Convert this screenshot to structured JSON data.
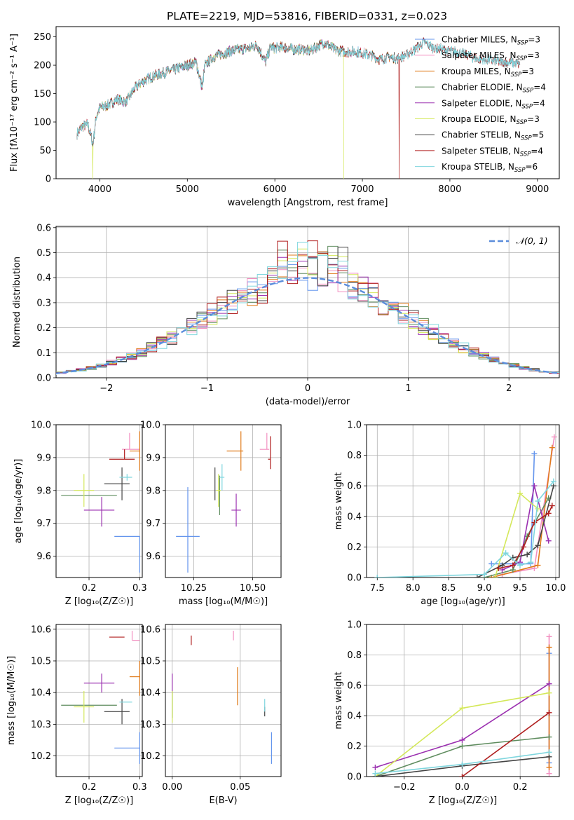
{
  "title": "PLATE=2219, MJD=53816, FIBERID=0331, z=0.023",
  "colors": {
    "Chabrier MILES": "#6495ED",
    "Salpeter MILES": "#F28FC0",
    "Kroupa MILES": "#E07B1A",
    "Chabrier ELODIE": "#5E8C5E",
    "Salpeter ELODIE": "#9B30B0",
    "Kroupa ELODIE": "#D4E85A",
    "Chabrier STELIB": "#444444",
    "Salpeter STELIB": "#B01F1F",
    "Kroupa STELIB": "#7FD6DE",
    "normal": "#5B8DDB"
  },
  "chart_data": [
    {
      "id": "spectrum",
      "type": "line",
      "xlabel": "wavelength [Angstrom, rest frame]",
      "ylabel": "Flux [fλ10⁻¹⁷ erg cm⁻² s⁻¹ A⁻¹]",
      "xlim": [
        3500,
        9250
      ],
      "ylim": [
        0,
        268
      ],
      "xticks": [
        4000,
        5000,
        6000,
        7000,
        8000,
        9000
      ],
      "yticks": [
        0,
        50,
        100,
        150,
        200,
        250
      ],
      "grid": false,
      "legend_position": "right",
      "legend": [
        "Chabrier MILES, NSSP=3",
        "Salpeter MILES, NSSP=3",
        "Kroupa MILES, NSSP=3",
        "Chabrier ELODIE, NSSP=4",
        "Salpeter ELODIE, NSSP=4",
        "Kroupa ELODIE, NSSP=3",
        "Chabrier STELIB, NSSP=5",
        "Salpeter STELIB, NSSP=4",
        "Kroupa STELIB, NSSP=6"
      ],
      "continuum": {
        "x": [
          3740,
          3800,
          3860,
          3900,
          3920,
          3960,
          4000,
          4100,
          4200,
          4300,
          4400,
          4500,
          4600,
          4700,
          4800,
          4900,
          5000,
          5100,
          5170,
          5200,
          5300,
          5400,
          5500,
          5600,
          5700,
          5800,
          5895,
          5950,
          6000,
          6100,
          6200,
          6300,
          6400,
          6563,
          6700,
          6800,
          6900,
          7000,
          7100,
          7200,
          7300,
          7400,
          7500,
          7600,
          7700,
          7800,
          7900,
          8000,
          8100,
          8200,
          8300,
          8400,
          8500,
          8600,
          8700,
          8800
        ],
        "y": [
          80,
          92,
          96,
          75,
          60,
          110,
          125,
          130,
          140,
          135,
          160,
          172,
          180,
          185,
          190,
          195,
          200,
          205,
          160,
          200,
          215,
          220,
          225,
          228,
          230,
          235,
          205,
          232,
          230,
          232,
          228,
          228,
          225,
          240,
          226,
          224,
          224,
          222,
          217,
          210,
          215,
          212,
          218,
          228,
          240,
          232,
          228,
          225,
          222,
          218,
          212,
          210,
          208,
          206,
          205,
          202
        ]
      },
      "dropouts": [
        {
          "series": "Kroupa ELODIE",
          "x": 3920
        },
        {
          "series": "Kroupa ELODIE",
          "x": 6790
        },
        {
          "series": "Salpeter STELIB",
          "x": 7420
        }
      ],
      "end_x": {
        "MILES": 7400,
        "ELODIE": 6790,
        "STELIB": 8800
      }
    },
    {
      "id": "residual_hist",
      "type": "area",
      "xlabel": "(data-model)/error",
      "ylabel": "Normed distribution",
      "xlim": [
        -2.5,
        2.5
      ],
      "ylim": [
        0,
        0.605
      ],
      "xticks": [
        -2,
        -1,
        0,
        1,
        2
      ],
      "yticks": [
        0.0,
        0.1,
        0.2,
        0.3,
        0.4,
        0.5,
        0.6
      ],
      "xtick_labels": [
        "−2",
        "−1",
        "0",
        "1",
        "2"
      ],
      "grid": true,
      "legend_position": "top-right",
      "legend": [
        "𝒩(0, 1)"
      ],
      "bin_width": 0.1,
      "reference_curve": "normal(0,1) pdf"
    },
    {
      "id": "age_vs_Z",
      "type": "scatter",
      "xlabel": "Z [log₁₀(Z/Z☉)]",
      "ylabel": "age  [log₁₀(age/yr)]",
      "xlim": [
        0.135,
        0.305
      ],
      "ylim": [
        9.535,
        10.0
      ],
      "xticks": [
        0.2,
        0.3
      ],
      "yticks": [
        9.6,
        9.7,
        9.8,
        9.9,
        10.0
      ],
      "grid": true,
      "points": [
        {
          "series": "Chabrier MILES",
          "x": 0.3,
          "y": 9.66,
          "xerr": [
            0.05,
            0.0
          ],
          "yerr": [
            0.11,
            0.0
          ]
        },
        {
          "series": "Salpeter MILES",
          "x": 0.28,
          "y": 9.925,
          "xerr": [
            0.015,
            0.02
          ],
          "yerr": [
            0.0,
            0.05
          ]
        },
        {
          "series": "Kroupa MILES",
          "x": 0.3,
          "y": 9.92,
          "xerr": [
            0.02,
            0.0
          ],
          "yerr": [
            0.06,
            0.06
          ]
        },
        {
          "series": "Chabrier ELODIE",
          "x": 0.205,
          "y": 9.785,
          "xerr": [
            0.06,
            0.05
          ],
          "yerr": [
            0.0,
            0.0
          ]
        },
        {
          "series": "Salpeter ELODIE",
          "x": 0.225,
          "y": 9.74,
          "xerr": [
            0.035,
            0.025
          ],
          "yerr": [
            0.05,
            0.04
          ]
        },
        {
          "series": "Kroupa ELODIE",
          "x": 0.19,
          "y": 9.8,
          "xerr": [
            0.02,
            0.02
          ],
          "yerr": [
            0.05,
            0.05
          ]
        },
        {
          "series": "Chabrier STELIB",
          "x": 0.265,
          "y": 9.82,
          "xerr": [
            0.035,
            0.015
          ],
          "yerr": [
            0.05,
            0.05
          ]
        },
        {
          "series": "Salpeter STELIB",
          "x": 0.27,
          "y": 9.895,
          "xerr": [
            0.03,
            0.02
          ],
          "yerr": [
            0.0,
            0.03
          ]
        },
        {
          "series": "Kroupa STELIB",
          "x": 0.275,
          "y": 9.84,
          "xerr": [
            0.015,
            0.01
          ],
          "yerr": [
            0.01,
            0.01
          ]
        }
      ]
    },
    {
      "id": "age_vs_mass",
      "type": "scatter",
      "xlabel": "mass [log₁₀(M/M☉)]",
      "ylabel": "",
      "xlim": [
        10.13,
        10.62
      ],
      "ylim": [
        9.535,
        10.0
      ],
      "xticks": [
        10.25,
        10.5
      ],
      "yticks": [
        9.6,
        9.7,
        9.8,
        9.9,
        10.0
      ],
      "grid": true,
      "points": [
        {
          "series": "Chabrier MILES",
          "x": 10.225,
          "y": 9.66,
          "xerr": [
            0.05,
            0.05
          ],
          "yerr": [
            0.11,
            0.15
          ]
        },
        {
          "series": "Salpeter MILES",
          "x": 10.56,
          "y": 9.925,
          "xerr": [
            0.03,
            0.01
          ],
          "yerr": [
            0.0,
            0.05
          ]
        },
        {
          "series": "Kroupa MILES",
          "x": 10.45,
          "y": 9.92,
          "xerr": [
            0.06,
            0.01
          ],
          "yerr": [
            0.06,
            0.06
          ]
        },
        {
          "series": "Chabrier ELODIE",
          "x": 10.36,
          "y": 9.785,
          "xerr": [
            0.0,
            0.0
          ],
          "yerr": [
            0.06,
            0.06
          ]
        },
        {
          "series": "Salpeter ELODIE",
          "x": 10.43,
          "y": 9.74,
          "xerr": [
            0.02,
            0.02
          ],
          "yerr": [
            0.05,
            0.05
          ]
        },
        {
          "series": "Kroupa ELODIE",
          "x": 10.355,
          "y": 9.8,
          "xerr": [
            0.01,
            0.01
          ],
          "yerr": [
            0.05,
            0.05
          ]
        },
        {
          "series": "Chabrier STELIB",
          "x": 10.34,
          "y": 9.82,
          "xerr": [
            0.0,
            0.0
          ],
          "yerr": [
            0.05,
            0.05
          ]
        },
        {
          "series": "Salpeter STELIB",
          "x": 10.575,
          "y": 9.895,
          "xerr": [
            0.01,
            0.0
          ],
          "yerr": [
            0.03,
            0.07
          ]
        },
        {
          "series": "Kroupa STELIB",
          "x": 10.37,
          "y": 9.84,
          "xerr": [
            0.01,
            0.01
          ],
          "yerr": [
            0.04,
            0.04
          ]
        }
      ]
    },
    {
      "id": "mass_weight_vs_age",
      "type": "line",
      "xlabel": "age  [log₁₀(age/yr)]",
      "ylabel": "mass weight",
      "xlim": [
        7.35,
        10.05
      ],
      "ylim": [
        0,
        1.0
      ],
      "xticks": [
        7.5,
        8.0,
        8.5,
        9.0,
        9.5,
        10.0
      ],
      "yticks": [
        0.0,
        0.2,
        0.4,
        0.6,
        0.8,
        1.0
      ],
      "grid": true,
      "series": [
        {
          "name": "Chabrier MILES",
          "x": [
            9.1,
            9.65,
            9.7
          ],
          "y": [
            0.09,
            0.09,
            0.81
          ]
        },
        {
          "name": "Salpeter MILES",
          "x": [
            9.25,
            9.7,
            9.98
          ],
          "y": [
            0.02,
            0.06,
            0.92
          ]
        },
        {
          "name": "Kroupa MILES",
          "x": [
            9.1,
            9.75,
            9.95
          ],
          "y": [
            0.0,
            0.08,
            0.85
          ]
        },
        {
          "name": "Chabrier ELODIE",
          "x": [
            9.0,
            9.4,
            9.6,
            9.9
          ],
          "y": [
            0.0,
            0.05,
            0.27,
            0.52
          ]
        },
        {
          "name": "Salpeter ELODIE",
          "x": [
            9.25,
            9.5,
            9.7,
            9.9
          ],
          "y": [
            0.05,
            0.1,
            0.6,
            0.24
          ]
        },
        {
          "name": "Kroupa ELODIE",
          "x": [
            9.15,
            9.5,
            9.75
          ],
          "y": [
            0.0,
            0.55,
            0.45
          ]
        },
        {
          "name": "Chabrier STELIB",
          "x": [
            8.9,
            9.25,
            9.4,
            9.6,
            9.75,
            9.97
          ],
          "y": [
            0.0,
            0.08,
            0.13,
            0.15,
            0.21,
            0.6
          ]
        },
        {
          "name": "Salpeter STELIB",
          "x": [
            9.2,
            9.4,
            9.55,
            9.7,
            9.9,
            9.95
          ],
          "y": [
            0.06,
            0.08,
            0.2,
            0.36,
            0.42,
            0.47
          ]
        },
        {
          "name": "Kroupa STELIB",
          "x": [
            7.5,
            9.0,
            9.3,
            9.5,
            9.65,
            9.75,
            9.97
          ],
          "y": [
            0.0,
            0.02,
            0.16,
            0.08,
            0.1,
            0.5,
            0.63
          ]
        }
      ]
    },
    {
      "id": "mass_vs_Z",
      "type": "scatter",
      "xlabel": "Z [log₁₀(Z/Z☉)]",
      "ylabel": "mass [log₁₀(M/M☉)]",
      "xlim": [
        0.135,
        0.305
      ],
      "ylim": [
        10.135,
        10.615
      ],
      "xticks": [
        0.2,
        0.3
      ],
      "yticks": [
        10.2,
        10.3,
        10.4,
        10.5,
        10.6
      ],
      "grid": true,
      "points": [
        {
          "series": "Chabrier MILES",
          "x": 0.3,
          "y": 10.225,
          "xerr": [
            0.05,
            0.0
          ],
          "yerr": [
            0.05,
            0.05
          ]
        },
        {
          "series": "Salpeter MILES",
          "x": 0.285,
          "y": 10.565,
          "xerr": [
            0.0,
            0.015
          ],
          "yerr": [
            0.0,
            0.03
          ]
        },
        {
          "series": "Kroupa MILES",
          "x": 0.3,
          "y": 10.45,
          "xerr": [
            0.02,
            0.0
          ],
          "yerr": [
            0.06,
            0.05
          ]
        },
        {
          "series": "Chabrier ELODIE",
          "x": 0.205,
          "y": 10.36,
          "xerr": [
            0.06,
            0.05
          ],
          "yerr": [
            0.0,
            0.0
          ]
        },
        {
          "series": "Salpeter ELODIE",
          "x": 0.225,
          "y": 10.43,
          "xerr": [
            0.035,
            0.025
          ],
          "yerr": [
            0.03,
            0.03
          ]
        },
        {
          "series": "Kroupa ELODIE",
          "x": 0.19,
          "y": 10.355,
          "xerr": [
            0.02,
            0.02
          ],
          "yerr": [
            0.05,
            0.05
          ]
        },
        {
          "series": "Chabrier STELIB",
          "x": 0.265,
          "y": 10.34,
          "xerr": [
            0.035,
            0.015
          ],
          "yerr": [
            0.04,
            0.04
          ]
        },
        {
          "series": "Salpeter STELIB",
          "x": 0.27,
          "y": 10.575,
          "xerr": [
            0.03,
            0.0
          ],
          "yerr": [
            0.0,
            0.0
          ]
        },
        {
          "series": "Kroupa STELIB",
          "x": 0.275,
          "y": 10.37,
          "xerr": [
            0.015,
            0.01
          ],
          "yerr": [
            0.0,
            0.0
          ]
        }
      ]
    },
    {
      "id": "mass_vs_ebv",
      "type": "scatter",
      "xlabel": "E(B-V)",
      "ylabel": "",
      "xlim": [
        -0.005,
        0.08
      ],
      "ylim": [
        10.135,
        10.615
      ],
      "xticks": [
        0.0,
        0.05
      ],
      "xtick_labels": [
        "0.00",
        "0.05"
      ],
      "yticks": [
        10.2,
        10.3,
        10.4,
        10.5,
        10.6
      ],
      "grid": true,
      "points": [
        {
          "series": "Chabrier MILES",
          "x": 0.073,
          "y": 10.225,
          "xerr": [
            0.0,
            0.0
          ],
          "yerr": [
            0.05,
            0.05
          ]
        },
        {
          "series": "Salpeter MILES",
          "x": 0.045,
          "y": 10.565,
          "xerr": [
            0.0,
            0.0
          ],
          "yerr": [
            0.0,
            0.03
          ]
        },
        {
          "series": "Kroupa MILES",
          "x": 0.048,
          "y": 10.42,
          "xerr": [
            0.0,
            0.0
          ],
          "yerr": [
            0.06,
            0.06
          ]
        },
        {
          "series": "Chabrier ELODIE",
          "x": 0.0,
          "y": 10.36,
          "xerr": [
            0.0,
            0.0
          ],
          "yerr": [
            0.04,
            0.04
          ]
        },
        {
          "series": "Salpeter ELODIE",
          "x": 0.0,
          "y": 10.43,
          "xerr": [
            0.0,
            0.0
          ],
          "yerr": [
            0.03,
            0.03
          ]
        },
        {
          "series": "Kroupa ELODIE",
          "x": 0.0,
          "y": 10.355,
          "xerr": [
            0.0,
            0.0
          ],
          "yerr": [
            0.05,
            0.05
          ]
        },
        {
          "series": "Chabrier STELIB",
          "x": 0.068,
          "y": 10.34,
          "xerr": [
            0.0,
            0.0
          ],
          "yerr": [
            0.015,
            0.015
          ]
        },
        {
          "series": "Salpeter STELIB",
          "x": 0.014,
          "y": 10.565,
          "xerr": [
            0.0,
            0.0
          ],
          "yerr": [
            0.015,
            0.015
          ]
        },
        {
          "series": "Kroupa STELIB",
          "x": 0.068,
          "y": 10.36,
          "xerr": [
            0.0,
            0.0
          ],
          "yerr": [
            0.02,
            0.02
          ]
        }
      ]
    },
    {
      "id": "mass_weight_vs_Z",
      "type": "line",
      "xlabel": "Z [log₁₀(Z/Z☉)]",
      "ylabel": "mass weight",
      "xlim": [
        -0.33,
        0.335
      ],
      "ylim": [
        0,
        1.0
      ],
      "xticks": [
        -0.2,
        0.0,
        0.2
      ],
      "xtick_labels": [
        "−0.2",
        "0.0",
        "0.2"
      ],
      "yticks": [
        0.0,
        0.2,
        0.4,
        0.6,
        0.8,
        1.0
      ],
      "grid": true,
      "series": [
        {
          "name": "Chabrier MILES",
          "x": [
            0.3,
            0.3
          ],
          "y": [
            0.09,
            0.81
          ]
        },
        {
          "name": "Salpeter MILES",
          "x": [
            0.3,
            0.3
          ],
          "y": [
            0.02,
            0.92
          ]
        },
        {
          "name": "Kroupa MILES",
          "x": [
            0.3,
            0.3
          ],
          "y": [
            0.06,
            0.85
          ]
        },
        {
          "name": "Chabrier ELODIE",
          "x": [
            -0.3,
            0.0,
            0.3
          ],
          "y": [
            0.0,
            0.2,
            0.26
          ]
        },
        {
          "name": "Salpeter ELODIE",
          "x": [
            -0.3,
            0.0,
            0.3
          ],
          "y": [
            0.06,
            0.24,
            0.61
          ]
        },
        {
          "name": "Kroupa ELODIE",
          "x": [
            -0.3,
            0.0,
            0.3
          ],
          "y": [
            0.0,
            0.45,
            0.55
          ]
        },
        {
          "name": "Chabrier STELIB",
          "x": [
            -0.3,
            0.0,
            0.3
          ],
          "y": [
            0.0,
            0.07,
            0.13
          ]
        },
        {
          "name": "Salpeter STELIB",
          "x": [
            0.0,
            0.3
          ],
          "y": [
            0.0,
            0.42
          ]
        },
        {
          "name": "Kroupa STELIB",
          "x": [
            -0.3,
            0.0,
            0.3
          ],
          "y": [
            0.02,
            0.08,
            0.16
          ]
        }
      ]
    }
  ]
}
